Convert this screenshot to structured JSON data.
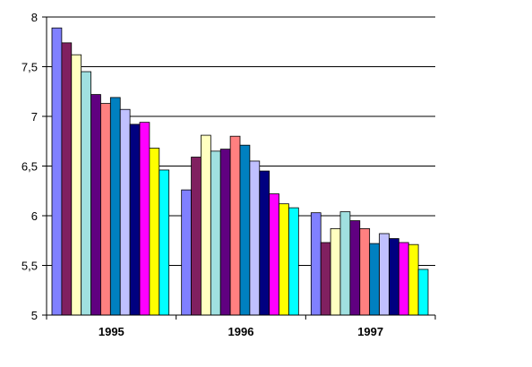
{
  "chart_data": {
    "type": "bar",
    "title": "",
    "xlabel": "",
    "ylabel": "",
    "categories": [
      "1995",
      "1996",
      "1997"
    ],
    "ylim": [
      5,
      8
    ],
    "yticks": [
      "5",
      "5,5",
      "6",
      "6,5",
      "7",
      "7,5",
      "8"
    ],
    "grid": true,
    "legend": "none",
    "series": [
      {
        "color": "#8080ff",
        "values": [
          7.89,
          6.26,
          6.03
        ]
      },
      {
        "color": "#802060",
        "values": [
          7.74,
          6.59,
          5.73
        ]
      },
      {
        "color": "#ffffc0",
        "values": [
          7.62,
          6.81,
          5.87
        ]
      },
      {
        "color": "#a0e0e0",
        "values": [
          7.45,
          6.65,
          6.04
        ]
      },
      {
        "color": "#600080",
        "values": [
          7.22,
          6.67,
          5.95
        ]
      },
      {
        "color": "#ff8080",
        "values": [
          7.13,
          6.8,
          5.87
        ]
      },
      {
        "color": "#0080c0",
        "values": [
          7.19,
          6.71,
          5.72
        ]
      },
      {
        "color": "#c0c0ff",
        "values": [
          7.07,
          6.55,
          5.82
        ]
      },
      {
        "color": "#000080",
        "values": [
          6.92,
          6.45,
          5.77
        ]
      },
      {
        "color": "#ff00ff",
        "values": [
          6.94,
          6.22,
          5.73
        ]
      },
      {
        "color": "#ffff00",
        "values": [
          6.68,
          6.12,
          5.71
        ]
      },
      {
        "color": "#00ffff",
        "values": [
          6.46,
          6.08,
          5.46
        ]
      }
    ]
  }
}
